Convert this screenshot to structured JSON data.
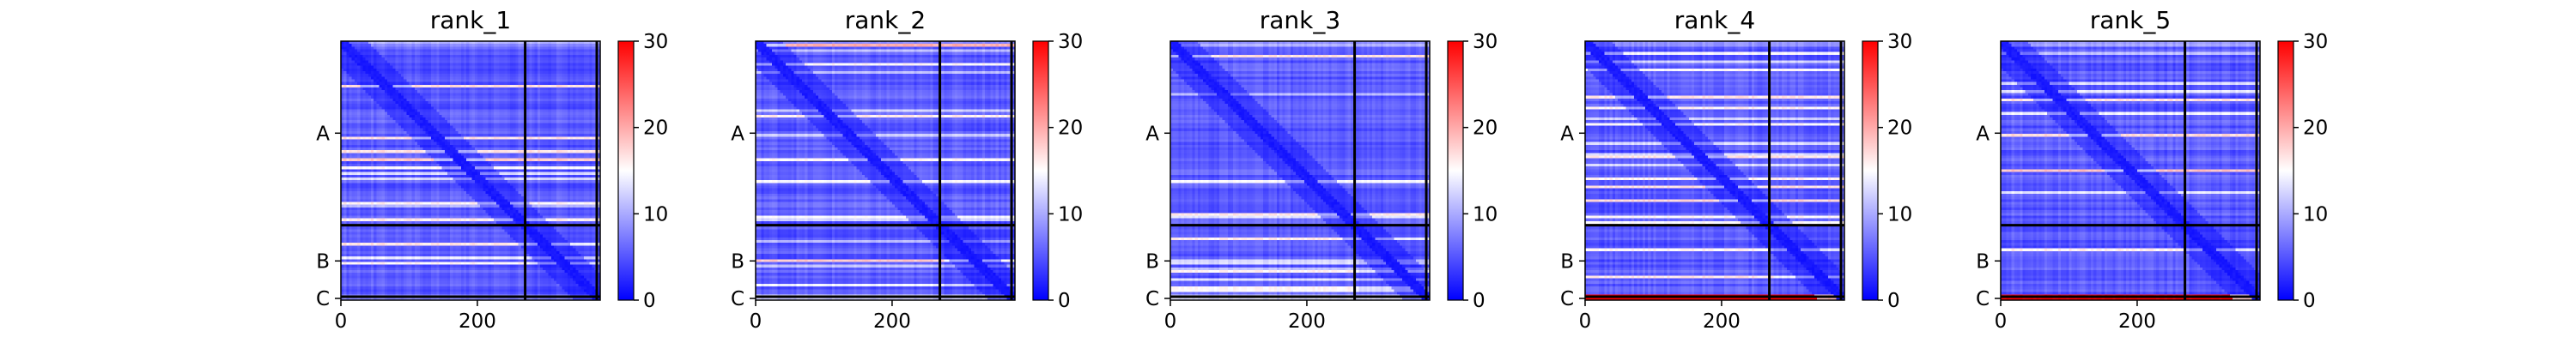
{
  "chart_data": [
    {
      "type": "heatmap",
      "title": "rank_1",
      "x_ticks": [
        "0",
        "200"
      ],
      "y_ticks": [
        "A",
        "B",
        "C"
      ],
      "colorbar": {
        "min": 0,
        "max": 30,
        "ticks": [
          "0",
          "10",
          "20",
          "30"
        ],
        "colormap": [
          "#0000ff",
          "#ffffff",
          "#ff0000"
        ]
      },
      "chain_boundaries": [
        270,
        375
      ],
      "size": 380,
      "c_error_level": 6
    },
    {
      "type": "heatmap",
      "title": "rank_2",
      "x_ticks": [
        "0",
        "200"
      ],
      "y_ticks": [
        "A",
        "B",
        "C"
      ],
      "colorbar": {
        "min": 0,
        "max": 30,
        "ticks": [
          "0",
          "10",
          "20",
          "30"
        ],
        "colormap": [
          "#0000ff",
          "#ffffff",
          "#ff0000"
        ]
      },
      "chain_boundaries": [
        270,
        375
      ],
      "size": 380,
      "c_error_level": 10
    },
    {
      "type": "heatmap",
      "title": "rank_3",
      "x_ticks": [
        "0",
        "200"
      ],
      "y_ticks": [
        "A",
        "B",
        "C"
      ],
      "colorbar": {
        "min": 0,
        "max": 30,
        "ticks": [
          "0",
          "10",
          "20",
          "30"
        ],
        "colormap": [
          "#0000ff",
          "#ffffff",
          "#ff0000"
        ]
      },
      "chain_boundaries": [
        270,
        375
      ],
      "size": 380,
      "c_error_level": 10
    },
    {
      "type": "heatmap",
      "title": "rank_4",
      "x_ticks": [
        "0",
        "200"
      ],
      "y_ticks": [
        "A",
        "B",
        "C"
      ],
      "colorbar": {
        "min": 0,
        "max": 30,
        "ticks": [
          "0",
          "10",
          "20",
          "30"
        ],
        "colormap": [
          "#0000ff",
          "#ffffff",
          "#ff0000"
        ]
      },
      "chain_boundaries": [
        270,
        375
      ],
      "size": 380,
      "c_error_level": 28
    },
    {
      "type": "heatmap",
      "title": "rank_5",
      "x_ticks": [
        "0",
        "200"
      ],
      "y_ticks": [
        "A",
        "B",
        "C"
      ],
      "colorbar": {
        "min": 0,
        "max": 30,
        "ticks": [
          "0",
          "10",
          "20",
          "30"
        ],
        "colormap": [
          "#0000ff",
          "#ffffff",
          "#ff0000"
        ]
      },
      "chain_boundaries": [
        270,
        375
      ],
      "size": 380,
      "c_error_level": 28
    }
  ]
}
